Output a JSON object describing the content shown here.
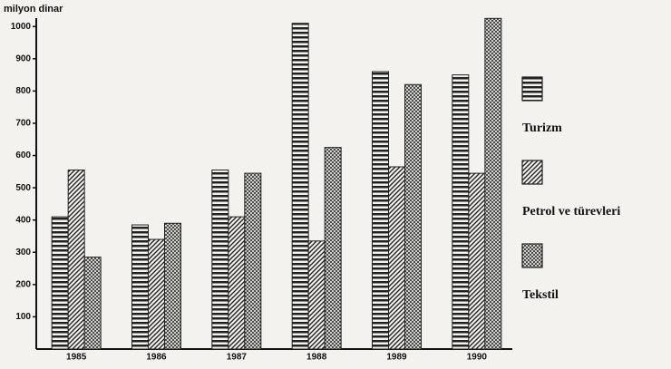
{
  "chart_data": {
    "type": "bar",
    "y_label": "milyon dinar",
    "categories": [
      "1985",
      "1986",
      "1987",
      "1988",
      "1989",
      "1990"
    ],
    "series": [
      {
        "name": "Turizm",
        "color": "#222222",
        "pattern": "horizontal",
        "values": [
          410,
          385,
          555,
          1010,
          860,
          850
        ]
      },
      {
        "name": "Petrol ve türevleri",
        "color": "#222222",
        "pattern": "diagonal",
        "values": [
          555,
          340,
          410,
          335,
          565,
          545
        ]
      },
      {
        "name": "Tekstil",
        "color": "#222222",
        "pattern": "dots",
        "values": [
          285,
          390,
          545,
          625,
          820,
          1025
        ]
      }
    ],
    "ylim": [
      0,
      1040
    ],
    "yticks": [
      100,
      200,
      300,
      400,
      500,
      600,
      700,
      800,
      900,
      1000
    ],
    "grid": false,
    "legend": "right"
  }
}
